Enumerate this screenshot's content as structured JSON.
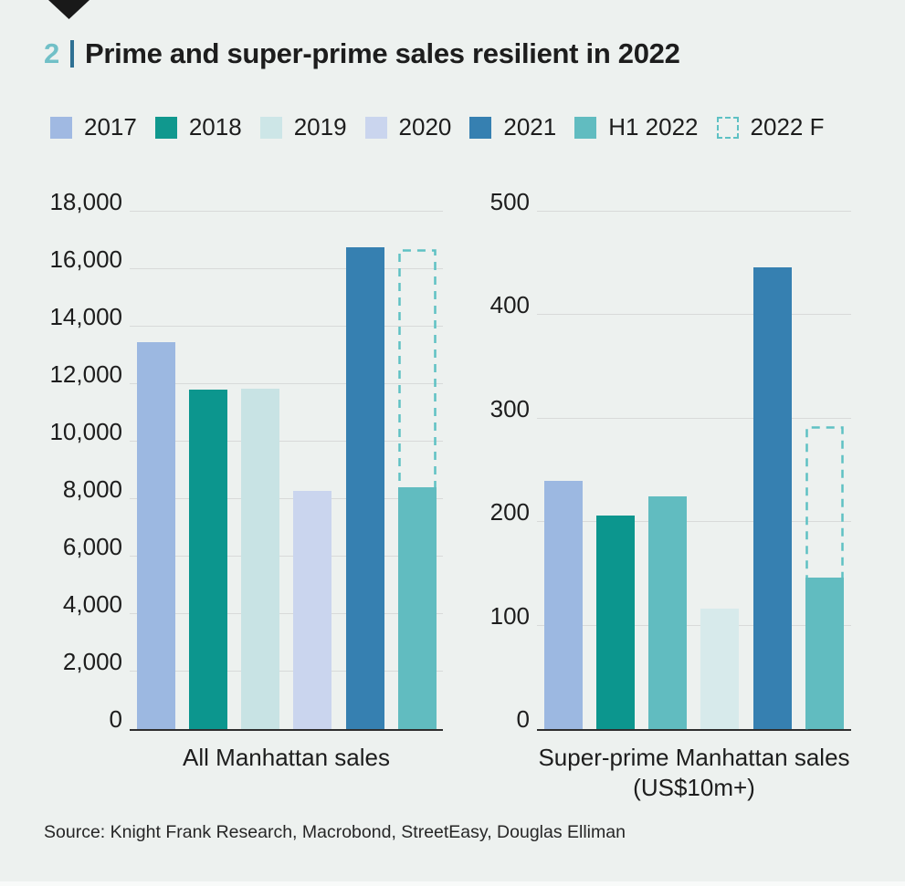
{
  "header": {
    "figure_number": "2",
    "title": "Prime and super-prime sales resilient in 2022",
    "accent_color": "#71c0c7",
    "separator_color": "#2e7093",
    "marker_icon": "triangle-down"
  },
  "legend": {
    "items": [
      {
        "label": "2017",
        "color": "#a0b9e2",
        "style": "solid"
      },
      {
        "label": "2018",
        "color": "#10988e",
        "style": "solid"
      },
      {
        "label": "2019",
        "color": "#cde6e7",
        "style": "solid"
      },
      {
        "label": "2020",
        "color": "#cad5ee",
        "style": "solid"
      },
      {
        "label": "2021",
        "color": "#3680b1",
        "style": "solid"
      },
      {
        "label": "H1 2022",
        "color": "#61bcc0",
        "style": "solid"
      },
      {
        "label": "2022 F",
        "color": "#5ec1c4",
        "style": "dashed"
      }
    ]
  },
  "chart_data": [
    {
      "type": "bar",
      "title": "All Manhattan sales",
      "xlabel_lines": [
        "All Manhattan sales"
      ],
      "ylabel": "",
      "ylim": [
        0,
        18000
      ],
      "grid": true,
      "legend_position": "top",
      "yticks": [
        {
          "value": 0,
          "label": "0"
        },
        {
          "value": 2000,
          "label": "2,000"
        },
        {
          "value": 4000,
          "label": "4,000"
        },
        {
          "value": 6000,
          "label": "6,000"
        },
        {
          "value": 8000,
          "label": "8,000"
        },
        {
          "value": 10000,
          "label": "10,000"
        },
        {
          "value": 12000,
          "label": "12,000"
        },
        {
          "value": 14000,
          "label": "14,000"
        },
        {
          "value": 16000,
          "label": "16,000"
        },
        {
          "value": 18000,
          "label": "18,000"
        }
      ],
      "bars": [
        {
          "year": "2017",
          "value": 13450,
          "color": "#9cb8e1",
          "slot": 0
        },
        {
          "year": "2018",
          "value": 11800,
          "color": "#0c968e",
          "slot": 1
        },
        {
          "year": "2019",
          "value": 11850,
          "color": "#c8e3e4",
          "slot": 2
        },
        {
          "year": "2020",
          "value": 8300,
          "color": "#cad5ee",
          "slot": 3
        },
        {
          "year": "2021",
          "value": 16750,
          "color": "#3680b1",
          "slot": 4
        },
        {
          "year": "H1 2022",
          "value": 8400,
          "color": "#61bcc0",
          "slot": 5
        }
      ],
      "forecast": {
        "year": "2022 F",
        "value": 16700,
        "color": "#5ec1c4",
        "slot": 5
      }
    },
    {
      "type": "bar",
      "title": "Super-prime Manhattan sales (US$10m+)",
      "xlabel_lines": [
        "Super-prime Manhattan sales",
        "(US$10m+)"
      ],
      "ylabel": "",
      "ylim": [
        0,
        500
      ],
      "grid": true,
      "legend_position": "top",
      "yticks": [
        {
          "value": 0,
          "label": "0"
        },
        {
          "value": 100,
          "label": "100"
        },
        {
          "value": 200,
          "label": "200"
        },
        {
          "value": 300,
          "label": "300"
        },
        {
          "value": 400,
          "label": "400"
        },
        {
          "value": 500,
          "label": "500"
        }
      ],
      "bars": [
        {
          "year": "2017",
          "value": 240,
          "color": "#9cb8e1",
          "slot": 0
        },
        {
          "year": "2018",
          "value": 206,
          "color": "#0c968e",
          "slot": 1
        },
        {
          "year": "2019",
          "value": 225,
          "color": "#61bcc0",
          "slot": 2
        },
        {
          "year": "2020",
          "value": 116,
          "color": "#d7eaeb",
          "slot": 3
        },
        {
          "year": "2021",
          "value": 446,
          "color": "#3680b1",
          "slot": 4
        },
        {
          "year": "H1 2022",
          "value": 146,
          "color": "#61bcc0",
          "slot": 5
        }
      ],
      "forecast": {
        "year": "2022 F",
        "value": 293,
        "color": "#5ec1c4",
        "slot": 5
      }
    }
  ],
  "source": "Source: Knight Frank Research, Macrobond, StreetEasy, Douglas Elliman",
  "colors": {
    "background": "#edf1ef",
    "gridline": "#d8dad9",
    "axis": "#2e2e2e",
    "text": "#1d1d1d"
  }
}
